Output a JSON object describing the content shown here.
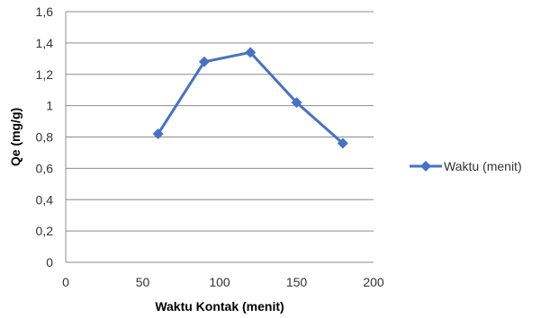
{
  "chart_data": {
    "type": "scatter",
    "title": "",
    "xlabel": "Waktu Kontak (menit)",
    "ylabel": "Qe (mg/g)",
    "xlim": [
      0,
      200
    ],
    "ylim": [
      0,
      1.6
    ],
    "x_ticks": [
      "0",
      "50",
      "100",
      "150",
      "200"
    ],
    "y_ticks": [
      "0",
      "0,2",
      "0,4",
      "0,6",
      "0,8",
      "1",
      "1,2",
      "1,4",
      "1,6"
    ],
    "grid": "horizontal",
    "legend_position": "right",
    "marker": "diamond",
    "line_style": "straight lines with markers",
    "series": [
      {
        "name": "Waktu (menit)",
        "color": "#4472C4",
        "points": [
          {
            "x": 60,
            "y": 0.82
          },
          {
            "x": 90,
            "y": 1.28
          },
          {
            "x": 120,
            "y": 1.34
          },
          {
            "x": 150,
            "y": 1.02
          },
          {
            "x": 180,
            "y": 0.76
          }
        ]
      }
    ]
  }
}
